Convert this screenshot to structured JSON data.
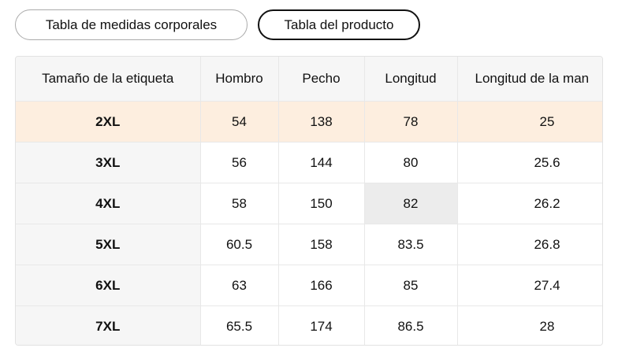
{
  "tabs": [
    "Tabla de medidas corporales",
    "Tabla del producto"
  ],
  "table": {
    "header": [
      "Tamaño de la etiqueta",
      "Hombro",
      "Pecho",
      "Longitud",
      "Longitud de la man"
    ],
    "rows": [
      [
        "2XL",
        "54",
        "138",
        "78",
        "25"
      ],
      [
        "3XL",
        "56",
        "144",
        "80",
        "25.6"
      ],
      [
        "4XL",
        "58",
        "150",
        "82",
        "26.2"
      ],
      [
        "5XL",
        "60.5",
        "158",
        "83.5",
        "26.8"
      ],
      [
        "6XL",
        "63",
        "166",
        "85",
        "27.4"
      ],
      [
        "7XL",
        "65.5",
        "174",
        "86.5",
        "28"
      ]
    ]
  }
}
